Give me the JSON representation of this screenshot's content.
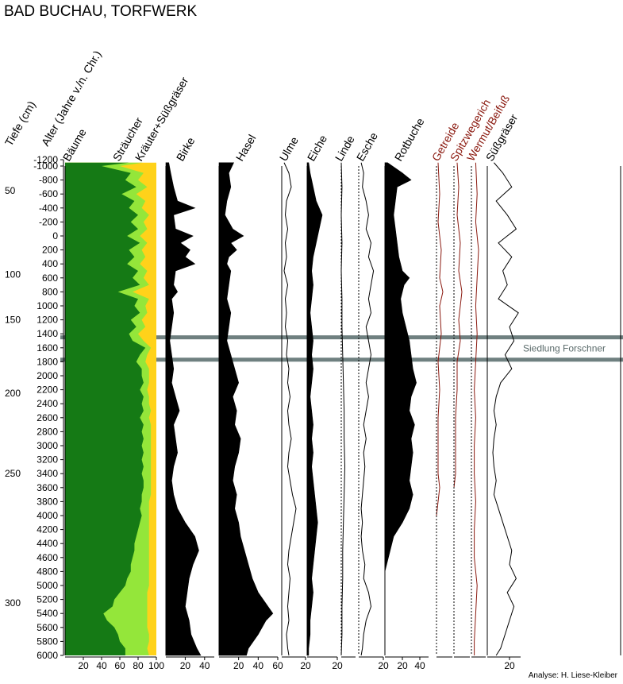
{
  "title": "BAD BUCHAU, TORFWERK",
  "axis_titles": {
    "depth": "Tiefe (cm)",
    "age": "Alter (Jahre v./n. Chr.)"
  },
  "age_ticks": [
    -1200,
    -1000,
    -800,
    -600,
    -400,
    -200,
    0,
    200,
    400,
    600,
    800,
    1000,
    1200,
    1400,
    1600,
    1800,
    2000,
    2200,
    2400,
    2600,
    2800,
    3000,
    3200,
    3400,
    3600,
    3800,
    4000,
    4200,
    4400,
    4600,
    4800,
    5000,
    5200,
    5400,
    5600,
    5800,
    6000
  ],
  "age_tick_labels": [
    "-1200",
    "-1000",
    "-800",
    "-600",
    "-400",
    "-200",
    "0",
    "200",
    "400",
    "600",
    "800",
    "1000",
    "1200",
    "1400",
    "1600",
    "1800",
    "2000",
    "2200",
    "2400",
    "2600",
    "2800",
    "3000",
    "3200",
    "3400",
    "3600",
    "3800",
    "4000",
    "4200",
    "4400",
    "4600",
    "4800",
    "5000",
    "5200",
    "5400",
    "5600",
    "5800",
    "6000"
  ],
  "depth_ticks": [
    {
      "label": "50",
      "age": -650
    },
    {
      "label": "100",
      "age": 550
    },
    {
      "label": "150",
      "age": 1200
    },
    {
      "label": "200",
      "age": 2250
    },
    {
      "label": "250",
      "age": 3400
    },
    {
      "label": "300",
      "age": 5250
    }
  ],
  "settlement": {
    "label": "Siedlung Forschner",
    "age_from": 1450,
    "age_to": 1770
  },
  "credit": "Analyse: H. Liese-Kleiber",
  "chart_data": {
    "type": "area",
    "ylabel": "Alter (Jahre v./n. Chr.)",
    "ylim": [
      -1200,
      6000
    ],
    "summary": {
      "name": "Bäume / Sträucher / Kräuter+Süßgräser",
      "labels": [
        "Bäume",
        "Sträucher",
        "Kräuter+Süßgräser"
      ],
      "colors": [
        "#157a15",
        "#94e63a",
        "#ffd21a"
      ],
      "xlim": [
        0,
        100
      ],
      "tick_labels": [
        "20",
        "40",
        "60",
        "80",
        "100"
      ],
      "age": [
        -1100,
        -1000,
        -900,
        -800,
        -700,
        -600,
        -500,
        -400,
        -300,
        -200,
        -100,
        0,
        100,
        200,
        300,
        400,
        500,
        600,
        700,
        800,
        900,
        1000,
        1100,
        1200,
        1300,
        1400,
        1500,
        1600,
        1700,
        1800,
        1900,
        2000,
        2100,
        2200,
        2300,
        2400,
        2500,
        2600,
        2700,
        2800,
        2900,
        3000,
        3100,
        3200,
        3300,
        3400,
        3500,
        3600,
        3700,
        3800,
        3900,
        4000,
        4100,
        4200,
        4300,
        4400,
        4500,
        4600,
        4700,
        4800,
        4900,
        5000,
        5100,
        5200,
        5300,
        5400,
        5500,
        5600,
        5700,
        5800,
        5900,
        6000
      ],
      "baeume": [
        70,
        40,
        72,
        66,
        78,
        62,
        76,
        70,
        80,
        72,
        80,
        68,
        82,
        70,
        76,
        68,
        80,
        74,
        82,
        58,
        80,
        76,
        82,
        72,
        78,
        70,
        74,
        88,
        82,
        78,
        84,
        84,
        86,
        82,
        86,
        84,
        86,
        82,
        86,
        84,
        86,
        84,
        86,
        84,
        86,
        84,
        86,
        86,
        84,
        84,
        82,
        84,
        82,
        80,
        78,
        76,
        76,
        74,
        72,
        72,
        68,
        66,
        60,
        54,
        52,
        42,
        46,
        54,
        58,
        60,
        66,
        66
      ],
      "straeucher": [
        85,
        60,
        86,
        80,
        90,
        78,
        88,
        84,
        92,
        86,
        90,
        82,
        90,
        84,
        88,
        82,
        90,
        86,
        92,
        74,
        92,
        88,
        90,
        84,
        88,
        80,
        86,
        94,
        90,
        88,
        92,
        92,
        92,
        90,
        92,
        92,
        94,
        92,
        94,
        94,
        94,
        94,
        94,
        94,
        94,
        94,
        94,
        94,
        94,
        92,
        92,
        92,
        92,
        92,
        92,
        92,
        92,
        92,
        92,
        92,
        92,
        92,
        90,
        90,
        90,
        90,
        90,
        90,
        92,
        92,
        90,
        92
      ],
      "kraeuter": [
        100,
        100,
        100,
        100,
        100,
        100,
        100,
        100,
        100,
        100,
        100,
        100,
        100,
        100,
        100,
        100,
        100,
        100,
        100,
        100,
        100,
        100,
        100,
        100,
        100,
        100,
        100,
        100,
        100,
        100,
        100,
        100,
        100,
        100,
        100,
        100,
        100,
        100,
        100,
        100,
        100,
        100,
        100,
        100,
        100,
        100,
        100,
        100,
        100,
        100,
        100,
        100,
        100,
        100,
        100,
        100,
        100,
        100,
        100,
        100,
        100,
        100,
        100,
        100,
        100,
        100,
        100,
        100,
        100,
        100,
        100,
        100
      ]
    },
    "series": [
      {
        "name": "Birke",
        "type": "area",
        "xlim": [
          0,
          50
        ],
        "tick_labels": [
          "20",
          "40"
        ],
        "age": [
          -1100,
          -900,
          -700,
          -500,
          -400,
          -300,
          -100,
          0,
          100,
          200,
          300,
          400,
          500,
          700,
          800,
          900,
          1100,
          1300,
          1500,
          1700,
          1900,
          2100,
          2300,
          2500,
          2700,
          2900,
          3100,
          3300,
          3500,
          3700,
          3900,
          4100,
          4300,
          4500,
          4700,
          4900,
          5100,
          5300,
          5500,
          5700,
          5900,
          6000
        ],
        "values": [
          3,
          5,
          8,
          12,
          30,
          8,
          10,
          28,
          15,
          25,
          20,
          30,
          10,
          8,
          12,
          6,
          8,
          6,
          4,
          6,
          8,
          6,
          10,
          14,
          8,
          10,
          12,
          8,
          6,
          8,
          12,
          20,
          30,
          34,
          28,
          24,
          22,
          20,
          24,
          26,
          32,
          36
        ]
      },
      {
        "name": "Hasel",
        "type": "area",
        "xlim": [
          0,
          60
        ],
        "tick_labels": [
          "20",
          "40",
          "60"
        ],
        "age": [
          -1100,
          -900,
          -700,
          -500,
          -300,
          -100,
          0,
          100,
          200,
          300,
          400,
          500,
          700,
          900,
          1100,
          1300,
          1500,
          1700,
          1900,
          2100,
          2300,
          2500,
          2700,
          2900,
          3100,
          3300,
          3500,
          3700,
          3900,
          4100,
          4300,
          4500,
          4700,
          4900,
          5100,
          5300,
          5400,
          5500,
          5700,
          5900,
          6000
        ],
        "values": [
          15,
          10,
          12,
          8,
          6,
          14,
          25,
          12,
          18,
          10,
          8,
          12,
          10,
          8,
          12,
          10,
          8,
          12,
          16,
          20,
          14,
          18,
          16,
          22,
          20,
          16,
          14,
          18,
          16,
          20,
          22,
          26,
          30,
          34,
          40,
          50,
          55,
          48,
          40,
          30,
          28
        ]
      },
      {
        "name": "Ulme",
        "type": "line",
        "xlim": [
          0,
          20
        ],
        "tick_labels": [
          "20"
        ],
        "age": [
          -1100,
          -900,
          -700,
          -500,
          -300,
          -100,
          100,
          300,
          500,
          700,
          900,
          1100,
          1300,
          1500,
          1700,
          1900,
          2100,
          2300,
          2500,
          2700,
          2900,
          3100,
          3300,
          3500,
          3700,
          3900,
          4100,
          4300,
          4500,
          4700,
          4900,
          5100,
          5300,
          5500,
          5700,
          5900,
          6000
        ],
        "values": [
          2,
          6,
          8,
          4,
          3,
          5,
          3,
          4,
          2,
          5,
          3,
          4,
          3,
          5,
          4,
          6,
          5,
          7,
          5,
          6,
          8,
          6,
          5,
          7,
          9,
          12,
          10,
          8,
          6,
          5,
          7,
          6,
          5,
          6,
          4,
          5,
          6
        ]
      },
      {
        "name": "Eiche",
        "type": "area",
        "xlim": [
          0,
          20
        ],
        "tick_labels": [
          "20"
        ],
        "age": [
          -1100,
          -900,
          -700,
          -500,
          -300,
          -100,
          100,
          300,
          500,
          700,
          900,
          1100,
          1300,
          1500,
          1700,
          1900,
          2100,
          2300,
          2500,
          2700,
          2900,
          3100,
          3300,
          3500,
          3700,
          3900,
          4100,
          4300,
          4500,
          4700,
          4900,
          5100,
          5300,
          5500,
          5700,
          5900,
          6000
        ],
        "values": [
          1,
          2,
          4,
          6,
          10,
          8,
          6,
          4,
          3,
          4,
          3,
          2,
          3,
          4,
          3,
          4,
          3,
          2,
          3,
          4,
          3,
          4,
          3,
          4,
          5,
          6,
          7,
          6,
          5,
          4,
          3,
          4,
          3,
          2,
          2,
          1,
          1
        ]
      },
      {
        "name": "Linde",
        "type": "line",
        "xlim": [
          0,
          20
        ],
        "tick_labels": [],
        "age": [
          -1100,
          -700,
          -300,
          100,
          500,
          900,
          1300,
          1700,
          2100,
          2500,
          2900,
          3300,
          3700,
          4100,
          4500,
          4900,
          5300,
          5700,
          6000
        ],
        "values": [
          0,
          1,
          0,
          1,
          0,
          1,
          1,
          2,
          3,
          4,
          4,
          5,
          4,
          3,
          2,
          2,
          1,
          1,
          0
        ]
      },
      {
        "name": "Esche",
        "type": "line",
        "xlim": [
          0,
          20
        ],
        "tick_labels": [
          "20"
        ],
        "age": [
          -1100,
          -900,
          -700,
          -500,
          -300,
          -100,
          100,
          300,
          500,
          700,
          900,
          1100,
          1300,
          1500,
          1700,
          1900,
          2100,
          2300,
          2500,
          2700,
          2900,
          3100,
          3300,
          3500,
          3700,
          3900,
          4100,
          4300,
          4500,
          4700,
          4900,
          5100,
          5300,
          5500,
          5700,
          5900,
          6000
        ],
        "values": [
          2,
          4,
          3,
          6,
          8,
          6,
          10,
          8,
          12,
          10,
          8,
          10,
          6,
          8,
          10,
          8,
          6,
          8,
          6,
          4,
          6,
          4,
          5,
          4,
          3,
          2,
          3,
          2,
          3,
          5,
          4,
          8,
          10,
          6,
          4,
          3,
          2
        ]
      },
      {
        "name": "Rotbuche",
        "type": "area",
        "xlim": [
          0,
          50
        ],
        "tick_labels": [
          "20",
          "40"
        ],
        "age": [
          -1100,
          -900,
          -800,
          -700,
          -500,
          -300,
          -100,
          100,
          300,
          500,
          600,
          700,
          900,
          1100,
          1300,
          1500,
          1700,
          1900,
          2100,
          2300,
          2500,
          2700,
          2900,
          3100,
          3300,
          3500,
          3700,
          3900,
          4100,
          4300,
          4500,
          4700,
          4800
        ],
        "values": [
          3,
          20,
          30,
          14,
          12,
          10,
          12,
          14,
          16,
          20,
          28,
          22,
          18,
          20,
          24,
          28,
          30,
          32,
          36,
          30,
          28,
          34,
          30,
          32,
          30,
          28,
          32,
          28,
          20,
          10,
          6,
          2,
          0
        ]
      },
      {
        "name": "Getreide",
        "type": "line",
        "color": "#8b1a10",
        "xlim": [
          0,
          10
        ],
        "tick_labels": [],
        "age": [
          -1100,
          -600,
          -200,
          200,
          600,
          800,
          1000,
          1400,
          1800,
          2200,
          2600,
          3000,
          3400,
          3600,
          4000
        ],
        "values": [
          1,
          2,
          1,
          3,
          2,
          4,
          2,
          3,
          1,
          2,
          1,
          1,
          1,
          2,
          0
        ]
      },
      {
        "name": "Spitzwegerich",
        "type": "line",
        "color": "#8b1a10",
        "xlim": [
          0,
          10
        ],
        "tick_labels": [],
        "age": [
          -1100,
          -700,
          -300,
          100,
          500,
          800,
          1200,
          1500,
          1800,
          2200,
          2600,
          3000,
          3400,
          3600
        ],
        "values": [
          2,
          3,
          2,
          4,
          3,
          5,
          3,
          4,
          2,
          2,
          1,
          1,
          1,
          0
        ]
      },
      {
        "name": "Wermut/Beifuß",
        "type": "line",
        "color": "#8b1a10",
        "xlim": [
          0,
          10
        ],
        "tick_labels": [],
        "age": [
          -1100,
          -600,
          -200,
          200,
          600,
          1000,
          1400,
          1800,
          2200,
          2600,
          3000,
          3400,
          3800,
          4200,
          4600,
          5000,
          5400,
          5800,
          6000
        ],
        "values": [
          3,
          4,
          3,
          5,
          4,
          3,
          4,
          3,
          2,
          3,
          2,
          2,
          3,
          2,
          2,
          4,
          3,
          2,
          2
        ]
      },
      {
        "name": "Süßgräser",
        "type": "line",
        "xlim": [
          0,
          30
        ],
        "tick_labels": [
          "20"
        ],
        "age": [
          -1100,
          -900,
          -700,
          -500,
          -300,
          -100,
          100,
          300,
          500,
          700,
          900,
          1100,
          1300,
          1500,
          1700,
          1900,
          2100,
          2300,
          2500,
          2700,
          2900,
          3100,
          3300,
          3500,
          3700,
          3900,
          4100,
          4300,
          4500,
          4700,
          4900,
          5100,
          5300,
          5500,
          5700,
          5900,
          6000
        ],
        "values": [
          6,
          14,
          22,
          8,
          18,
          26,
          10,
          22,
          14,
          18,
          10,
          28,
          20,
          24,
          16,
          22,
          12,
          8,
          6,
          8,
          6,
          5,
          6,
          8,
          6,
          10,
          14,
          18,
          22,
          20,
          26,
          18,
          24,
          20,
          16,
          12,
          8
        ]
      }
    ]
  }
}
